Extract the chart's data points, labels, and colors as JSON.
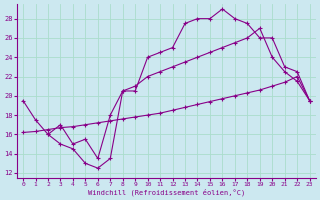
{
  "xlabel": "Windchill (Refroidissement éolien,°C)",
  "bg_color": "#cce8f0",
  "line_color": "#880088",
  "grid_color": "#aaddcc",
  "xlim": [
    -0.5,
    23.5
  ],
  "ylim": [
    11.5,
    29.5
  ],
  "xticks": [
    0,
    1,
    2,
    3,
    4,
    5,
    6,
    7,
    8,
    9,
    10,
    11,
    12,
    13,
    14,
    15,
    16,
    17,
    18,
    19,
    20,
    21,
    22,
    23
  ],
  "yticks": [
    12,
    14,
    16,
    18,
    20,
    22,
    24,
    26,
    28
  ],
  "series1_x": [
    0,
    1,
    2,
    3,
    4,
    5,
    6,
    7,
    8,
    9,
    10,
    11,
    12,
    13,
    14,
    15,
    16,
    17,
    18,
    19,
    20,
    21,
    22,
    23
  ],
  "series1_y": [
    19.5,
    17.5,
    16.0,
    15.0,
    14.5,
    13.0,
    12.5,
    13.5,
    20.5,
    20.5,
    24.0,
    24.5,
    25.0,
    27.5,
    28.0,
    28.0,
    29.0,
    28.0,
    27.5,
    26.0,
    26.0,
    23.0,
    22.5,
    19.5
  ],
  "series2_x": [
    0,
    1,
    2,
    3,
    4,
    5,
    6,
    7,
    8,
    9,
    10,
    11,
    12,
    13,
    14,
    15,
    16,
    17,
    18,
    19,
    20,
    21,
    22,
    23
  ],
  "series2_y": [
    16.2,
    16.3,
    16.5,
    16.7,
    16.8,
    17.0,
    17.2,
    17.4,
    17.6,
    17.8,
    18.0,
    18.2,
    18.5,
    18.8,
    19.1,
    19.4,
    19.7,
    20.0,
    20.3,
    20.6,
    21.0,
    21.4,
    22.0,
    19.5
  ],
  "series3_x": [
    2,
    3,
    4,
    5,
    6,
    7,
    8,
    9,
    10,
    11,
    12,
    13,
    14,
    15,
    16,
    17,
    18,
    19,
    20,
    21,
    22,
    23
  ],
  "series3_y": [
    16.0,
    17.0,
    15.0,
    15.5,
    13.5,
    18.0,
    20.5,
    21.0,
    22.0,
    22.5,
    23.0,
    23.5,
    24.0,
    24.5,
    25.0,
    25.5,
    26.0,
    27.0,
    24.0,
    22.5,
    21.5,
    19.5
  ]
}
